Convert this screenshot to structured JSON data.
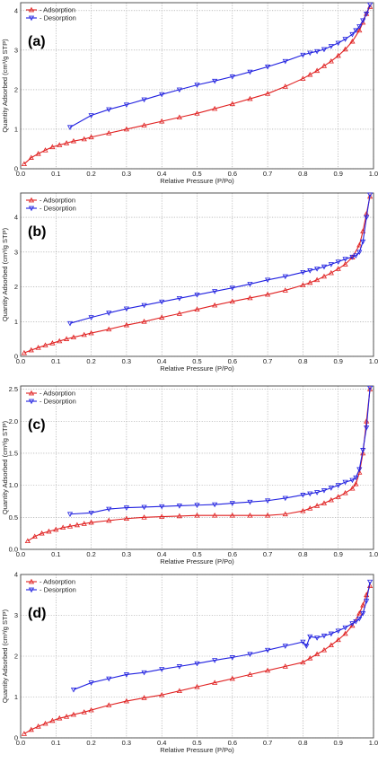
{
  "chart_data": [
    {
      "type": "line",
      "panel_label": "(a)",
      "xlabel": "Relative Pressure (P/Po)",
      "ylabel": "Quantity Adsorbed (cm³/g STP)",
      "xlim": [
        0,
        1.0
      ],
      "ylim": [
        0,
        4.2
      ],
      "xticks": [
        "0.0",
        "0.1",
        "0.2",
        "0.3",
        "0.4",
        "0.5",
        "0.6",
        "0.7",
        "0.8",
        "0.9",
        "1.0"
      ],
      "yticks": [
        0,
        1,
        2,
        3,
        4
      ],
      "grid": true,
      "legend_position": "top-left",
      "series": [
        {
          "name": "- Adsorption",
          "color": "#e02020",
          "marker": "triangle-up",
          "x": [
            0.01,
            0.03,
            0.05,
            0.07,
            0.09,
            0.11,
            0.13,
            0.15,
            0.18,
            0.2,
            0.25,
            0.3,
            0.35,
            0.4,
            0.45,
            0.5,
            0.55,
            0.6,
            0.65,
            0.7,
            0.75,
            0.8,
            0.82,
            0.84,
            0.86,
            0.88,
            0.9,
            0.92,
            0.94,
            0.96,
            0.97,
            0.98,
            0.99
          ],
          "y": [
            0.12,
            0.28,
            0.38,
            0.47,
            0.55,
            0.6,
            0.65,
            0.7,
            0.75,
            0.8,
            0.9,
            1.0,
            1.1,
            1.2,
            1.3,
            1.4,
            1.52,
            1.64,
            1.77,
            1.9,
            2.08,
            2.28,
            2.38,
            2.48,
            2.6,
            2.72,
            2.86,
            3.02,
            3.22,
            3.5,
            3.7,
            3.92,
            4.1
          ]
        },
        {
          "name": "- Desorption",
          "color": "#2020e0",
          "marker": "triangle-down",
          "x": [
            0.99,
            0.98,
            0.97,
            0.96,
            0.95,
            0.94,
            0.92,
            0.9,
            0.88,
            0.86,
            0.84,
            0.82,
            0.8,
            0.75,
            0.7,
            0.65,
            0.6,
            0.55,
            0.5,
            0.45,
            0.4,
            0.35,
            0.3,
            0.25,
            0.2,
            0.14
          ],
          "y": [
            4.15,
            3.92,
            3.75,
            3.6,
            3.5,
            3.4,
            3.28,
            3.18,
            3.1,
            3.02,
            2.97,
            2.93,
            2.88,
            2.72,
            2.58,
            2.45,
            2.33,
            2.22,
            2.12,
            2.0,
            1.88,
            1.75,
            1.62,
            1.5,
            1.35,
            1.05
          ]
        }
      ]
    },
    {
      "type": "line",
      "panel_label": "(b)",
      "xlabel": "Relative Pressure (P/Po)",
      "ylabel": "Quantity Adsorbed (cm³/g STP)",
      "xlim": [
        0,
        1.0
      ],
      "ylim": [
        0,
        4.7
      ],
      "xticks": [
        "0.0",
        "0.1",
        "0.2",
        "0.3",
        "0.4",
        "0.5",
        "0.6",
        "0.7",
        "0.8",
        "0.9",
        "1.0"
      ],
      "yticks": [
        0,
        1,
        2,
        3,
        4
      ],
      "grid": true,
      "legend_position": "top-left",
      "series": [
        {
          "name": "- Adsorption",
          "color": "#e02020",
          "marker": "triangle-up",
          "x": [
            0.01,
            0.03,
            0.05,
            0.07,
            0.09,
            0.11,
            0.13,
            0.15,
            0.18,
            0.2,
            0.25,
            0.3,
            0.35,
            0.4,
            0.45,
            0.5,
            0.55,
            0.6,
            0.65,
            0.7,
            0.75,
            0.8,
            0.82,
            0.84,
            0.86,
            0.88,
            0.9,
            0.92,
            0.94,
            0.96,
            0.97,
            0.98,
            0.99
          ],
          "y": [
            0.1,
            0.18,
            0.25,
            0.32,
            0.38,
            0.44,
            0.5,
            0.55,
            0.62,
            0.67,
            0.78,
            0.9,
            1.0,
            1.12,
            1.23,
            1.35,
            1.47,
            1.58,
            1.68,
            1.78,
            1.9,
            2.05,
            2.12,
            2.2,
            2.3,
            2.4,
            2.52,
            2.65,
            2.85,
            3.2,
            3.6,
            4.1,
            4.6
          ]
        },
        {
          "name": "- Desorption",
          "color": "#2020e0",
          "marker": "triangle-down",
          "x": [
            0.99,
            0.98,
            0.97,
            0.96,
            0.95,
            0.94,
            0.92,
            0.9,
            0.88,
            0.86,
            0.84,
            0.82,
            0.8,
            0.75,
            0.7,
            0.65,
            0.6,
            0.55,
            0.5,
            0.45,
            0.4,
            0.35,
            0.3,
            0.25,
            0.2,
            0.14
          ],
          "y": [
            4.65,
            4.0,
            3.3,
            3.0,
            2.9,
            2.86,
            2.8,
            2.72,
            2.65,
            2.58,
            2.52,
            2.47,
            2.42,
            2.3,
            2.2,
            2.08,
            1.97,
            1.87,
            1.77,
            1.67,
            1.57,
            1.47,
            1.37,
            1.25,
            1.12,
            0.95
          ]
        }
      ]
    },
    {
      "type": "line",
      "panel_label": "(c)",
      "xlabel": "Relative Pressure (P/Po)",
      "ylabel": "Quantity Adsorbed (cm³/g STP)",
      "xlim": [
        0,
        1.0
      ],
      "ylim": [
        0,
        2.55
      ],
      "xticks": [
        "0.0",
        "0.1",
        "0.2",
        "0.3",
        "0.4",
        "0.5",
        "0.6",
        "0.7",
        "0.8",
        "0.9",
        "1.0"
      ],
      "yticks": [
        "0.0",
        "0.5",
        "1.0",
        "1.5",
        "2.0",
        "2.5"
      ],
      "grid": true,
      "legend_position": "top-left",
      "series": [
        {
          "name": "- Adsorption",
          "color": "#e02020",
          "marker": "triangle-up",
          "x": [
            0.02,
            0.04,
            0.06,
            0.08,
            0.1,
            0.12,
            0.14,
            0.16,
            0.18,
            0.2,
            0.25,
            0.3,
            0.35,
            0.4,
            0.45,
            0.5,
            0.55,
            0.6,
            0.65,
            0.7,
            0.75,
            0.8,
            0.82,
            0.84,
            0.86,
            0.88,
            0.9,
            0.92,
            0.94,
            0.95,
            0.96,
            0.97,
            0.98,
            0.99
          ],
          "y": [
            0.13,
            0.2,
            0.25,
            0.28,
            0.31,
            0.34,
            0.36,
            0.38,
            0.4,
            0.42,
            0.45,
            0.48,
            0.5,
            0.51,
            0.52,
            0.53,
            0.53,
            0.53,
            0.53,
            0.53,
            0.55,
            0.6,
            0.64,
            0.68,
            0.72,
            0.77,
            0.82,
            0.88,
            0.95,
            1.02,
            1.2,
            1.5,
            2.0,
            2.5
          ]
        },
        {
          "name": "- Desorption",
          "color": "#2020e0",
          "marker": "triangle-down",
          "x": [
            0.99,
            0.98,
            0.97,
            0.96,
            0.95,
            0.94,
            0.92,
            0.9,
            0.88,
            0.86,
            0.84,
            0.82,
            0.8,
            0.75,
            0.7,
            0.65,
            0.6,
            0.55,
            0.5,
            0.45,
            0.4,
            0.35,
            0.3,
            0.25,
            0.2,
            0.14
          ],
          "y": [
            2.52,
            1.9,
            1.55,
            1.25,
            1.12,
            1.08,
            1.05,
            1.0,
            0.96,
            0.92,
            0.89,
            0.87,
            0.85,
            0.8,
            0.76,
            0.74,
            0.72,
            0.7,
            0.69,
            0.68,
            0.67,
            0.66,
            0.65,
            0.63,
            0.57,
            0.55
          ]
        }
      ]
    },
    {
      "type": "line",
      "panel_label": "(d)",
      "xlabel": "Relative Pressure (P/Po)",
      "ylabel": "Quantity Adsorbed (cm³/g STP)",
      "xlim": [
        0,
        1.0
      ],
      "ylim": [
        0,
        4.0
      ],
      "xticks": [
        "0.0",
        "0.1",
        "0.2",
        "0.3",
        "0.4",
        "0.5",
        "0.6",
        "0.7",
        "0.8",
        "0.9",
        "1.0"
      ],
      "yticks": [
        0,
        1,
        2,
        3,
        4
      ],
      "grid": true,
      "legend_position": "top-left",
      "series": [
        {
          "name": "- Adsorption",
          "color": "#e02020",
          "marker": "triangle-up",
          "x": [
            0.01,
            0.03,
            0.05,
            0.07,
            0.09,
            0.11,
            0.13,
            0.15,
            0.18,
            0.2,
            0.25,
            0.3,
            0.35,
            0.4,
            0.45,
            0.5,
            0.55,
            0.6,
            0.65,
            0.7,
            0.75,
            0.8,
            0.82,
            0.84,
            0.86,
            0.88,
            0.9,
            0.92,
            0.94,
            0.96,
            0.97,
            0.98,
            0.99
          ],
          "y": [
            0.1,
            0.2,
            0.28,
            0.35,
            0.42,
            0.48,
            0.52,
            0.57,
            0.63,
            0.68,
            0.8,
            0.9,
            0.98,
            1.05,
            1.15,
            1.25,
            1.35,
            1.45,
            1.55,
            1.65,
            1.75,
            1.85,
            1.95,
            2.05,
            2.15,
            2.27,
            2.4,
            2.55,
            2.75,
            3.05,
            3.25,
            3.5,
            3.72
          ]
        },
        {
          "name": "- Desorption",
          "color": "#2020e0",
          "marker": "triangle-down",
          "x": [
            0.99,
            0.98,
            0.97,
            0.96,
            0.95,
            0.94,
            0.92,
            0.9,
            0.88,
            0.86,
            0.84,
            0.82,
            0.81,
            0.8,
            0.75,
            0.7,
            0.65,
            0.6,
            0.55,
            0.5,
            0.45,
            0.4,
            0.35,
            0.3,
            0.25,
            0.2,
            0.15
          ],
          "y": [
            3.82,
            3.35,
            3.05,
            2.92,
            2.85,
            2.8,
            2.7,
            2.62,
            2.55,
            2.5,
            2.45,
            2.48,
            2.25,
            2.35,
            2.25,
            2.15,
            2.05,
            1.97,
            1.9,
            1.82,
            1.75,
            1.68,
            1.6,
            1.55,
            1.45,
            1.35,
            1.18
          ]
        }
      ]
    }
  ]
}
